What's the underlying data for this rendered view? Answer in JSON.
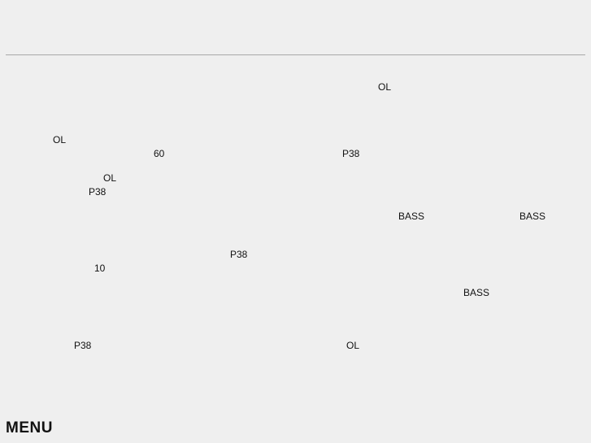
{
  "labels": [
    "OL",
    "OL",
    "60",
    "P38",
    "OL",
    "P38",
    "BASS",
    "BASS",
    "P38",
    "10",
    "BASS",
    "P38",
    "OL"
  ],
  "menu_label": "MENU"
}
